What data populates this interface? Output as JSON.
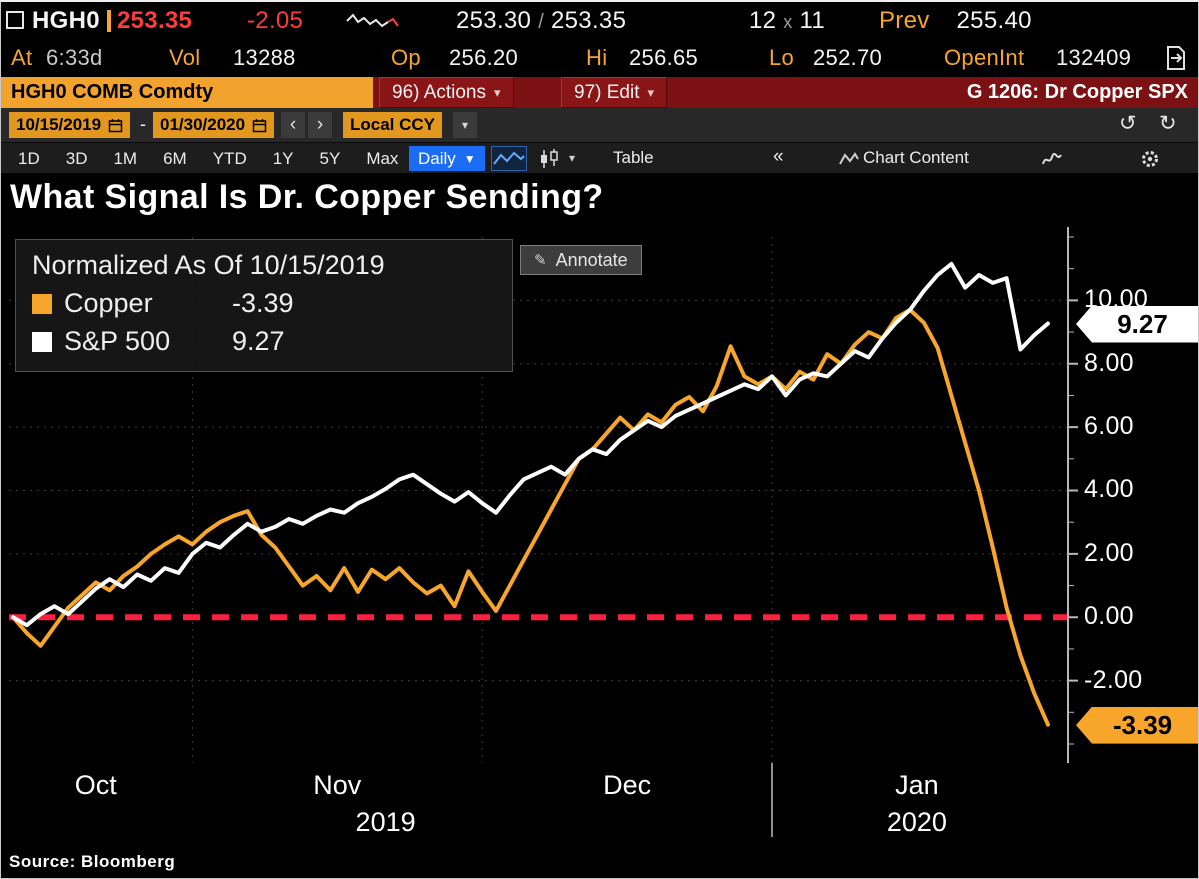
{
  "icons": {
    "slash": "/",
    "by": "x",
    "dropdown_small": "▾",
    "dropdown_solid": "▼",
    "prev": "‹",
    "next": "›",
    "undo": "↺",
    "redo": "↻",
    "collapse": "«",
    "pencil": "✎"
  },
  "quote_bar": {
    "ticker": "HGH0",
    "last": "253.35",
    "change": "-2.05",
    "bid": "253.30",
    "ask": "253.35",
    "bid_size": "12",
    "ask_size": "11",
    "prev_label": "Prev",
    "prev": "255.40"
  },
  "stats_bar": {
    "at_label": "At",
    "at_value": "6:33d",
    "vol_label": "Vol",
    "vol": "13288",
    "op_label": "Op",
    "op": "256.20",
    "hi_label": "Hi",
    "hi": "256.65",
    "lo_label": "Lo",
    "lo": "252.70",
    "openint_label": "OpenInt",
    "openint": "132409"
  },
  "command_bar": {
    "security": "HGH0 COMB Comdty",
    "actions": "96) Actions",
    "edit": "97) Edit",
    "screen": "G 1206: Dr Copper SPX"
  },
  "range_bar": {
    "start_date": "10/15/2019",
    "separator": "-",
    "end_date": "01/30/2020",
    "currency": "Local CCY"
  },
  "period_bar": {
    "periods": [
      "1D",
      "3D",
      "1M",
      "6M",
      "YTD",
      "1Y",
      "5Y",
      "Max"
    ],
    "frequency": "Daily",
    "table": "Table",
    "chart_content": "Chart Content"
  },
  "chart_data": {
    "type": "line",
    "title": "What Signal Is Dr. Copper Sending?",
    "annotate_label": "Annotate",
    "legend_title": "Normalized As Of 10/15/2019",
    "x_start": "10/15/2019",
    "x_end": "01/30/2020",
    "ylim": [
      -4.6,
      12.0
    ],
    "yticks": [
      10,
      8,
      6,
      4,
      2,
      0,
      -2
    ],
    "ytick_labels": [
      "10.00",
      "8.00",
      "6.00",
      "4.00",
      "2.00",
      "0.00",
      "-2.00"
    ],
    "baseline": 0,
    "baseline_color": "#fb2040",
    "grid_color": "#3d3d3d",
    "month_boundaries_idx": [
      13,
      34,
      55
    ],
    "month_labels": [
      {
        "label": "Oct",
        "idx": 6
      },
      {
        "label": "Nov",
        "idx": 23.5
      },
      {
        "label": "Dec",
        "idx": 44.5
      },
      {
        "label": "Jan",
        "idx": 65.5
      }
    ],
    "year_labels": [
      {
        "label": "2019",
        "idx": 27
      },
      {
        "label": "2020",
        "idx": 65.5
      }
    ],
    "year_divider_idx": 55,
    "legend_position": "top-left",
    "grid": true,
    "series": [
      {
        "name": "Copper",
        "color": "#f7a62b",
        "badge_color": "#f7a62b",
        "last_label": "-3.39",
        "values": [
          0,
          -0.5,
          -0.9,
          -0.3,
          0.3,
          0.7,
          1.1,
          0.85,
          1.3,
          1.6,
          2,
          2.3,
          2.55,
          2.3,
          2.7,
          3,
          3.2,
          3.35,
          2.6,
          2.2,
          1.6,
          1,
          1.3,
          0.85,
          1.55,
          0.8,
          1.5,
          1.2,
          1.55,
          1.1,
          0.75,
          1,
          0.35,
          1.45,
          0.8,
          0.2,
          1,
          1.8,
          2.6,
          3.4,
          4.2,
          5,
          5.3,
          5.8,
          6.3,
          5.9,
          6.4,
          6.15,
          6.7,
          6.95,
          6.5,
          7.3,
          8.55,
          7.6,
          7.35,
          7.6,
          7.2,
          7.75,
          7.5,
          8.3,
          8,
          8.6,
          9,
          8.8,
          9.45,
          9.7,
          9.3,
          8.5,
          7,
          5.5,
          4,
          2.2,
          0.3,
          -1.2,
          -2.4,
          -3.39
        ]
      },
      {
        "name": "S&P 500",
        "color": "#ffffff",
        "badge_color": "#ffffff",
        "last_label": "9.27",
        "values": [
          0,
          -0.25,
          0.1,
          0.35,
          0.1,
          0.5,
          0.9,
          1.2,
          0.95,
          1.35,
          1.15,
          1.55,
          1.4,
          2,
          2.35,
          2.2,
          2.6,
          2.95,
          2.7,
          2.85,
          3.1,
          2.95,
          3.2,
          3.4,
          3.3,
          3.6,
          3.8,
          4.05,
          4.35,
          4.5,
          4.2,
          3.9,
          3.65,
          3.95,
          3.6,
          3.3,
          3.85,
          4.35,
          4.55,
          4.75,
          4.5,
          5,
          5.3,
          5.15,
          5.6,
          5.9,
          6.2,
          6,
          6.35,
          6.55,
          6.75,
          6.95,
          7.15,
          7.35,
          7.2,
          7.6,
          7,
          7.5,
          7.7,
          7.6,
          8,
          8.4,
          8.2,
          8.8,
          9.3,
          9.7,
          10.3,
          10.8,
          11.15,
          10.4,
          10.8,
          10.55,
          10.7,
          8.45,
          8.9,
          9.27
        ]
      }
    ]
  },
  "footer": {
    "source": "Source: Bloomberg"
  }
}
